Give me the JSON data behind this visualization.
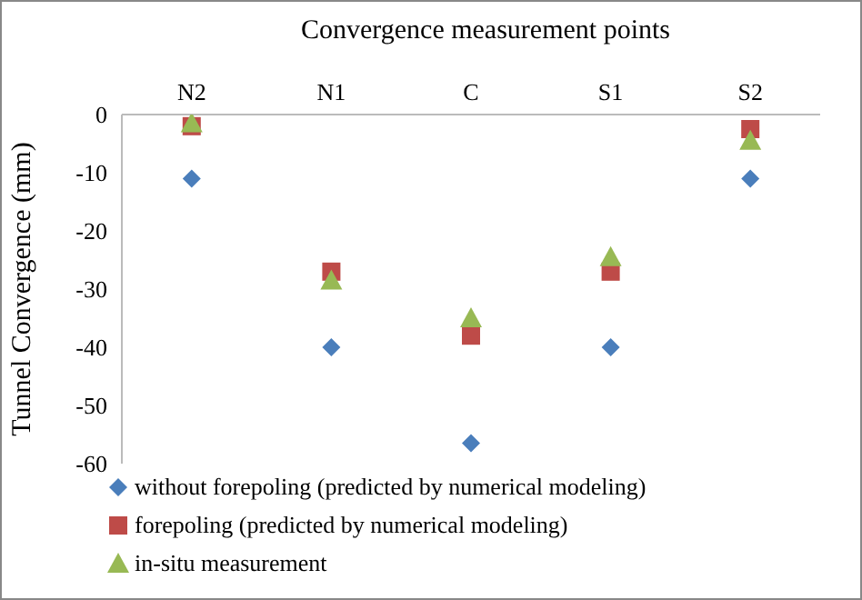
{
  "chart_data": {
    "type": "scatter",
    "xlabel": "Convergence measurement points",
    "ylabel": "Tunnel Convergence (mm)",
    "categories": [
      "N2",
      "N1",
      "C",
      "S1",
      "S2"
    ],
    "ylim": [
      -60,
      0
    ],
    "yticks": [
      -60,
      -50,
      -40,
      -30,
      -20,
      -10,
      0
    ],
    "grid": false,
    "legend": "bottom left",
    "series": [
      {
        "name": "without forepoling (predicted by numerical modeling)",
        "color": "#4a7ebb",
        "marker": "diamond",
        "values": [
          -11,
          -40,
          -56.5,
          -40,
          -11
        ]
      },
      {
        "name": "forepoling (predicted by numerical modeling)",
        "color": "#be4b48",
        "marker": "square",
        "values": [
          -2,
          -27,
          -38,
          -27,
          -2.5
        ]
      },
      {
        "name": "in-situ measurement",
        "color": "#98b954",
        "marker": "triangle",
        "values": [
          -1.5,
          -28.5,
          -35,
          -24.5,
          -4.5
        ]
      }
    ]
  }
}
